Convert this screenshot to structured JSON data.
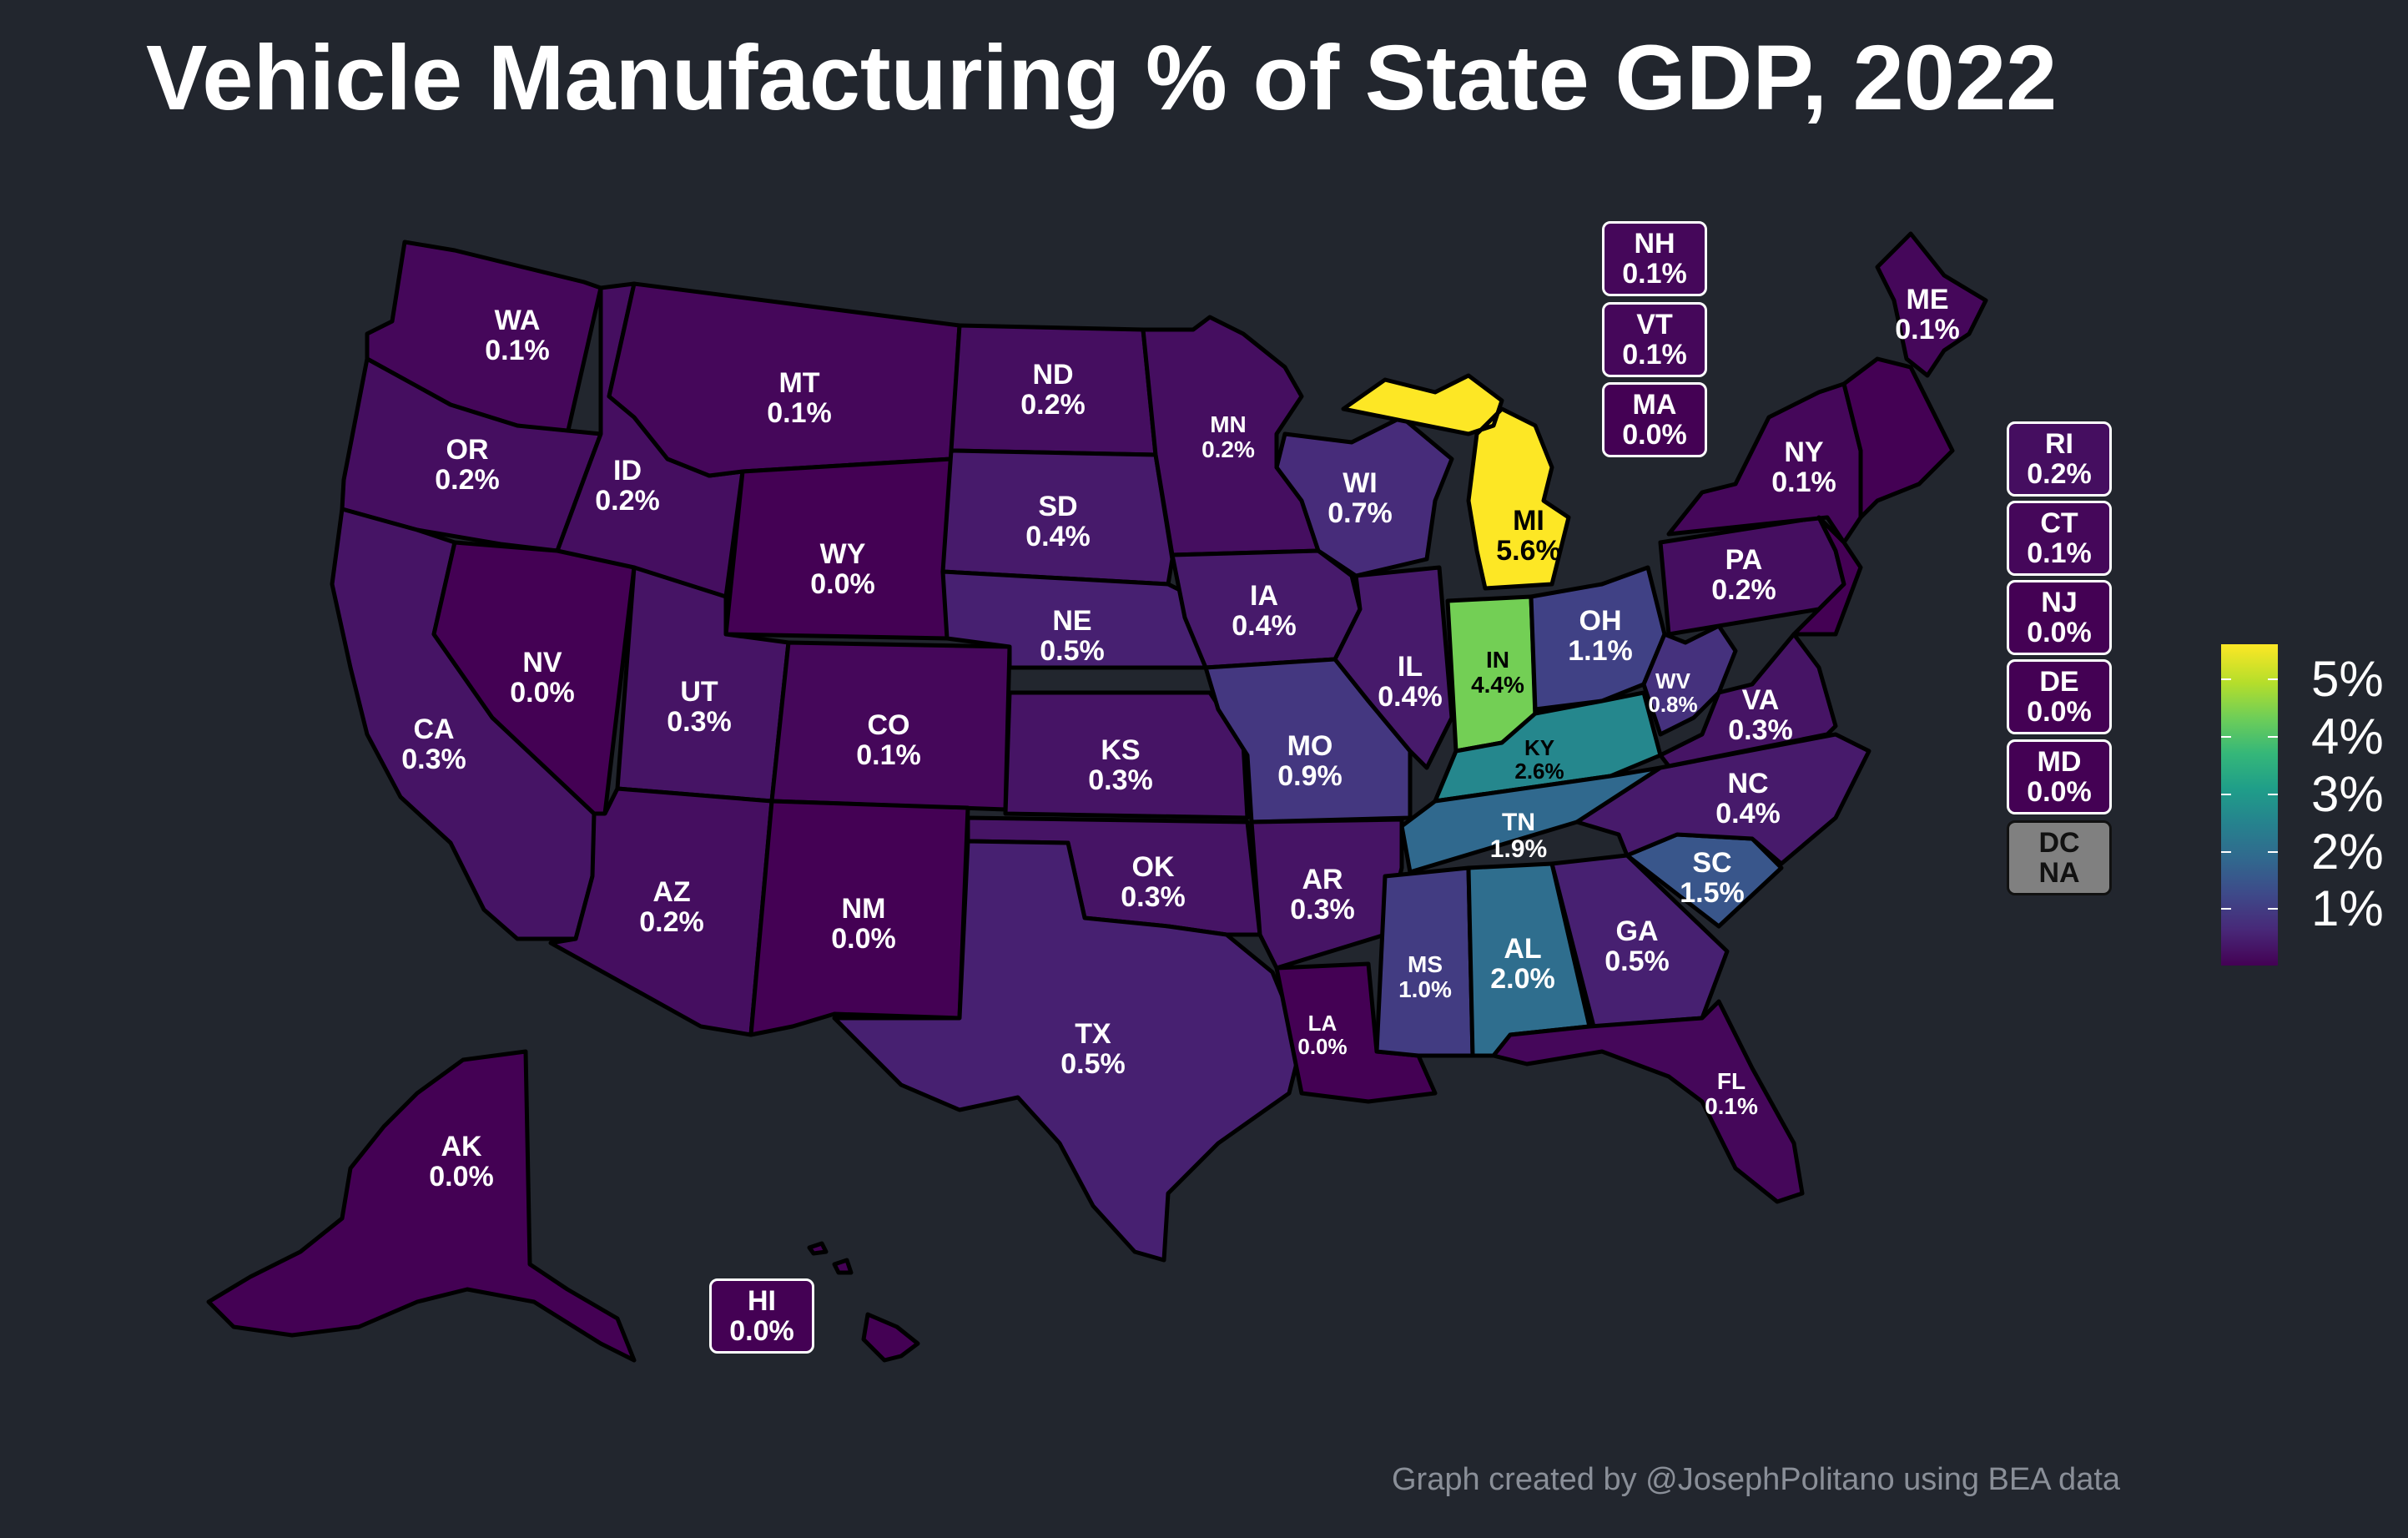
{
  "title": "Vehicle Manufacturing % of State GDP, 2022",
  "caption": "Graph created by @JosephPolitano using BEA data",
  "legend": {
    "labels": [
      "5%",
      "4%",
      "3%",
      "2%",
      "1%"
    ],
    "ticks": [
      5,
      4,
      3,
      2,
      1
    ]
  },
  "colors": {
    "background": "#22262e",
    "na": "#808080",
    "min": "#440154",
    "max": "#fde725"
  },
  "chart_data": {
    "type": "choropleth",
    "title": "Vehicle Manufacturing % of State GDP, 2022",
    "color_scale": "viridis",
    "legend_range": [
      0,
      5.6
    ],
    "states": [
      {
        "abbr": "WA",
        "label": "0.1%",
        "value": 0.1
      },
      {
        "abbr": "OR",
        "label": "0.2%",
        "value": 0.2
      },
      {
        "abbr": "CA",
        "label": "0.3%",
        "value": 0.3
      },
      {
        "abbr": "ID",
        "label": "0.2%",
        "value": 0.2
      },
      {
        "abbr": "NV",
        "label": "0.0%",
        "value": 0.0
      },
      {
        "abbr": "MT",
        "label": "0.1%",
        "value": 0.1
      },
      {
        "abbr": "WY",
        "label": "0.0%",
        "value": 0.0
      },
      {
        "abbr": "UT",
        "label": "0.3%",
        "value": 0.3
      },
      {
        "abbr": "AZ",
        "label": "0.2%",
        "value": 0.2
      },
      {
        "abbr": "CO",
        "label": "0.1%",
        "value": 0.1
      },
      {
        "abbr": "NM",
        "label": "0.0%",
        "value": 0.0
      },
      {
        "abbr": "ND",
        "label": "0.2%",
        "value": 0.2
      },
      {
        "abbr": "SD",
        "label": "0.4%",
        "value": 0.4
      },
      {
        "abbr": "NE",
        "label": "0.5%",
        "value": 0.5
      },
      {
        "abbr": "KS",
        "label": "0.3%",
        "value": 0.3
      },
      {
        "abbr": "OK",
        "label": "0.3%",
        "value": 0.3
      },
      {
        "abbr": "TX",
        "label": "0.5%",
        "value": 0.5
      },
      {
        "abbr": "MN",
        "label": "0.2%",
        "value": 0.2
      },
      {
        "abbr": "IA",
        "label": "0.4%",
        "value": 0.4
      },
      {
        "abbr": "MO",
        "label": "0.9%",
        "value": 0.9
      },
      {
        "abbr": "AR",
        "label": "0.3%",
        "value": 0.3
      },
      {
        "abbr": "LA",
        "label": "0.0%",
        "value": 0.0
      },
      {
        "abbr": "WI",
        "label": "0.7%",
        "value": 0.7
      },
      {
        "abbr": "IL",
        "label": "0.4%",
        "value": 0.4
      },
      {
        "abbr": "MI",
        "label": "5.6%",
        "value": 5.6
      },
      {
        "abbr": "IN",
        "label": "4.4%",
        "value": 4.4
      },
      {
        "abbr": "OH",
        "label": "1.1%",
        "value": 1.1
      },
      {
        "abbr": "KY",
        "label": "2.6%",
        "value": 2.6
      },
      {
        "abbr": "TN",
        "label": "1.9%",
        "value": 1.9
      },
      {
        "abbr": "MS",
        "label": "1.0%",
        "value": 1.0
      },
      {
        "abbr": "AL",
        "label": "2.0%",
        "value": 2.0
      },
      {
        "abbr": "GA",
        "label": "0.5%",
        "value": 0.5
      },
      {
        "abbr": "FL",
        "label": "0.1%",
        "value": 0.1
      },
      {
        "abbr": "SC",
        "label": "1.5%",
        "value": 1.5
      },
      {
        "abbr": "NC",
        "label": "0.4%",
        "value": 0.4
      },
      {
        "abbr": "VA",
        "label": "0.3%",
        "value": 0.3
      },
      {
        "abbr": "WV",
        "label": "0.8%",
        "value": 0.8
      },
      {
        "abbr": "PA",
        "label": "0.2%",
        "value": 0.2
      },
      {
        "abbr": "NY",
        "label": "0.1%",
        "value": 0.1
      },
      {
        "abbr": "ME",
        "label": "0.1%",
        "value": 0.1
      },
      {
        "abbr": "AK",
        "label": "0.0%",
        "value": 0.0
      },
      {
        "abbr": "HI",
        "label": "0.0%",
        "value": 0.0
      },
      {
        "abbr": "NH",
        "label": "0.1%",
        "value": 0.1
      },
      {
        "abbr": "VT",
        "label": "0.1%",
        "value": 0.1
      },
      {
        "abbr": "MA",
        "label": "0.0%",
        "value": 0.0
      },
      {
        "abbr": "RI",
        "label": "0.2%",
        "value": 0.2
      },
      {
        "abbr": "CT",
        "label": "0.1%",
        "value": 0.1
      },
      {
        "abbr": "NJ",
        "label": "0.0%",
        "value": 0.0
      },
      {
        "abbr": "DE",
        "label": "0.0%",
        "value": 0.0
      },
      {
        "abbr": "MD",
        "label": "0.0%",
        "value": 0.0
      },
      {
        "abbr": "DC",
        "label": "NA",
        "value": null
      }
    ]
  }
}
